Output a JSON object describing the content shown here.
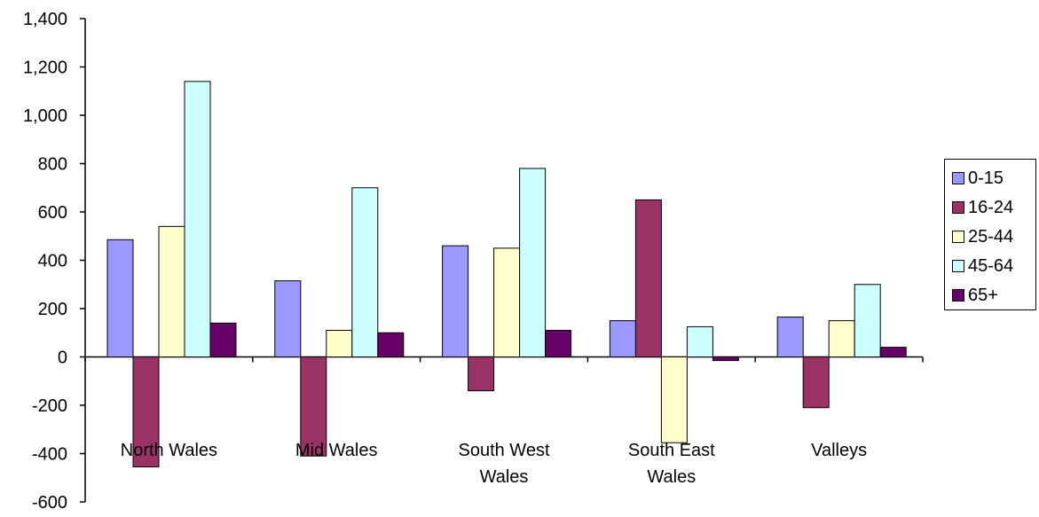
{
  "chart_data": {
    "type": "bar",
    "title": "",
    "xlabel": "",
    "ylabel": "",
    "ylim": [
      -600,
      1400
    ],
    "ytick_step": 200,
    "ytick_labels": [
      "-600",
      "-400",
      "-200",
      "0",
      "200",
      "400",
      "600",
      "800",
      "1,000",
      "1,200",
      "1,400"
    ],
    "categories": [
      "North Wales",
      "Mid Wales",
      "South West Wales",
      "South East Wales",
      "Valleys"
    ],
    "series": [
      {
        "name": "0-15",
        "color": "#9999FF",
        "values": [
          485,
          315,
          460,
          150,
          165
        ]
      },
      {
        "name": "16-24",
        "color": "#993366",
        "values": [
          -455,
          -410,
          -140,
          650,
          -210
        ]
      },
      {
        "name": "25-44",
        "color": "#FFFFCC",
        "values": [
          540,
          110,
          450,
          -355,
          150
        ]
      },
      {
        "name": "45-64",
        "color": "#CCFFFF",
        "values": [
          1140,
          700,
          780,
          125,
          300
        ]
      },
      {
        "name": "65+",
        "color": "#660066",
        "values": [
          140,
          100,
          110,
          -15,
          40
        ]
      }
    ],
    "grid": false,
    "legend_position": "right"
  }
}
